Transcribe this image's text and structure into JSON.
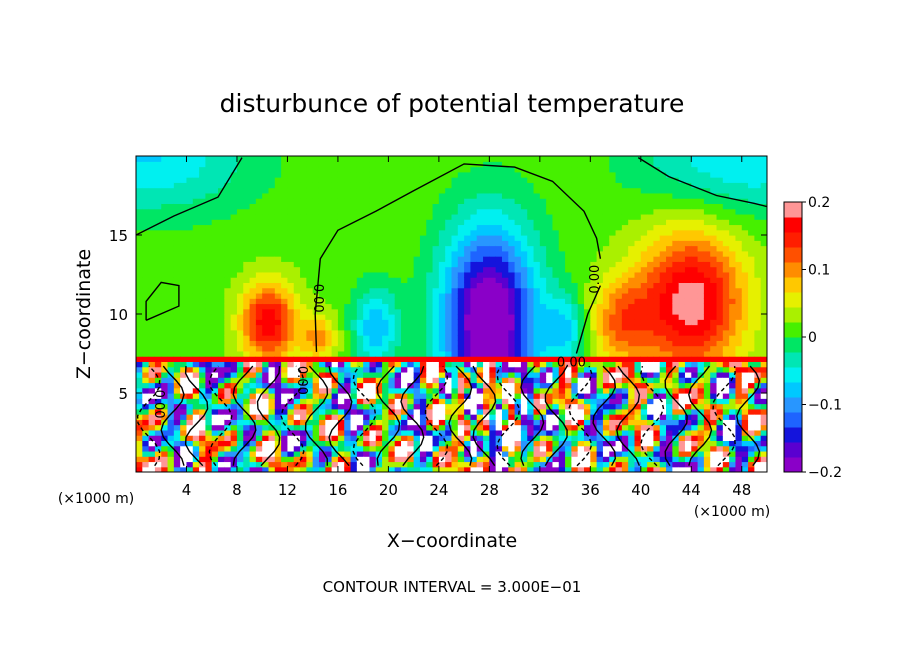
{
  "chart_data": {
    "type": "heatmap",
    "title": "disturbunce of potential temperature",
    "xlabel": "X−coordinate",
    "ylabel": "Z−coordinate",
    "x_unit_left": "(×1000 m)",
    "x_unit_right": "(×1000 m)",
    "footer": "CONTOUR INTERVAL = 3.000E−01",
    "xlim": [
      0,
      50
    ],
    "ylim": [
      0,
      20
    ],
    "x_ticks": [
      4,
      8,
      12,
      16,
      20,
      24,
      28,
      32,
      36,
      40,
      44,
      48
    ],
    "x_tick_labels": [
      "4",
      "8",
      "12",
      "16",
      "20",
      "24",
      "28",
      "32",
      "36",
      "40",
      "44",
      "48"
    ],
    "y_ticks": [
      5,
      10,
      15
    ],
    "y_tick_labels": [
      "5",
      "10",
      "15"
    ],
    "colorbar": {
      "range": [
        -0.2,
        0.2
      ],
      "tick_values": [
        0.2,
        0.1,
        0,
        -0.1,
        -0.2
      ],
      "tick_labels": [
        "0.2",
        "0.1",
        "0",
        "−0.1",
        "−0.2"
      ],
      "colors": [
        "#8a00c8",
        "#5a00d0",
        "#1414dc",
        "#1e64ff",
        "#2896ff",
        "#00c8ff",
        "#00f0f0",
        "#00e6b4",
        "#00e664",
        "#46f000",
        "#aaf000",
        "#e6f000",
        "#ffc800",
        "#ff8c00",
        "#ff5000",
        "#ff1e00",
        "#ff0000",
        "#ff9696"
      ]
    },
    "contour_labels": [
      {
        "text": "0.00",
        "x": 14.4,
        "y": 11,
        "rotate": 90
      },
      {
        "text": "0.00",
        "x": 36.4,
        "y": 12.2,
        "rotate": -90
      },
      {
        "text": "0.00",
        "x": 13.1,
        "y": 5.8,
        "rotate": 90
      },
      {
        "text": "0.00",
        "x": 34.5,
        "y": 6.9,
        "rotate": 0
      },
      {
        "text": "0.00",
        "x": 1.8,
        "y": 4.3,
        "rotate": 90
      }
    ],
    "features": [
      {
        "type": "warm",
        "x": 44,
        "y": 10.8,
        "sx": 4.2,
        "sy": 4.5,
        "amp": 0.18
      },
      {
        "type": "warm",
        "x": 10.5,
        "y": 9.5,
        "sx": 2.2,
        "sy": 2.5,
        "amp": 0.16
      },
      {
        "type": "warm",
        "x": 14.5,
        "y": 8.5,
        "sx": 1.5,
        "sy": 1.5,
        "amp": 0.08
      },
      {
        "type": "warm",
        "x": 38.5,
        "y": 9.5,
        "sx": 2.5,
        "sy": 2.8,
        "amp": 0.09
      },
      {
        "type": "cold",
        "x": 28,
        "y": 9.5,
        "sx": 3.8,
        "sy": 6,
        "amp": -0.24
      },
      {
        "type": "cold",
        "x": 19,
        "y": 9.2,
        "sx": 1.8,
        "sy": 2.5,
        "amp": -0.1
      },
      {
        "type": "cold",
        "x": 34,
        "y": 9,
        "sx": 1.6,
        "sy": 2.2,
        "amp": -0.08
      },
      {
        "type": "cold",
        "x": 1,
        "y": 20,
        "sx": 8,
        "sy": 3.5,
        "amp": -0.08
      },
      {
        "type": "cold",
        "x": 48,
        "y": 20,
        "sx": 8,
        "sy": 3.5,
        "amp": -0.08
      }
    ]
  }
}
